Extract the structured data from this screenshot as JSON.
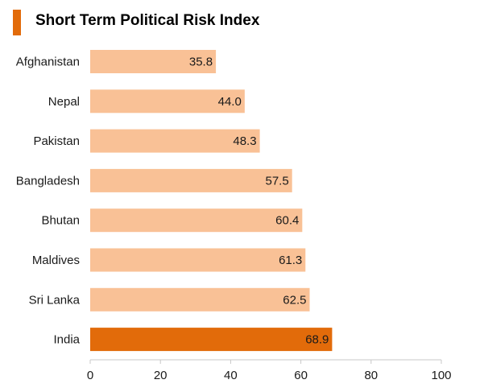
{
  "chart_data": {
    "type": "bar",
    "orientation": "horizontal",
    "title": "Short Term Political Risk Index",
    "categories": [
      "Afghanistan",
      "Nepal",
      "Pakistan",
      "Bangladesh",
      "Bhutan",
      "Maldives",
      "Sri Lanka",
      "India"
    ],
    "values": [
      35.8,
      44.0,
      48.3,
      57.5,
      60.4,
      61.3,
      62.5,
      68.9
    ],
    "value_labels": [
      "35.8",
      "44.0",
      "48.3",
      "57.5",
      "60.4",
      "61.3",
      "62.5",
      "68.9"
    ],
    "highlight_category": "India",
    "xlim": [
      0,
      100
    ],
    "xticks": [
      0,
      20,
      40,
      60,
      80,
      100
    ],
    "grid": false,
    "legend": "none",
    "colors": {
      "bar": "#f9c196",
      "highlight": "#e26b0a",
      "title_accent": "#e26b0a",
      "axis": "#c8c8c8"
    }
  }
}
